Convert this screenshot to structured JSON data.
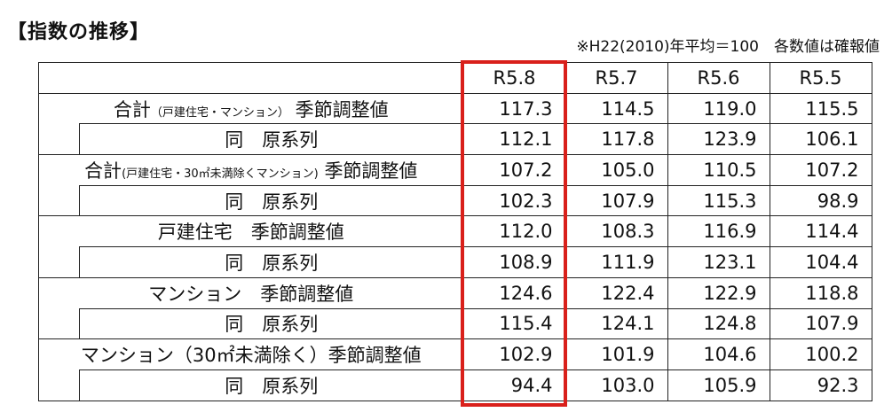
{
  "title": "【指数の推移】",
  "note": "※H22(2010)年平均＝100　各数値は確報値",
  "columns": [
    "R5.8",
    "R5.7",
    "R5.6",
    "R5.5"
  ],
  "highlight_color": "#d9201b",
  "groups": [
    {
      "label_main": "合計",
      "label_paren": "（戸建住宅・マンション）",
      "label_tail": "季節調整値",
      "sa": [
        "117.3",
        "114.5",
        "119.0",
        "115.5"
      ],
      "sub_label": "同　原系列",
      "orig": [
        "112.1",
        "117.8",
        "123.9",
        "106.1"
      ]
    },
    {
      "label_main": "合計",
      "label_paren": "(戸建住宅・30㎡未満除くマンション)",
      "label_tail": "季節調整値",
      "sa": [
        "107.2",
        "105.0",
        "110.5",
        "107.2"
      ],
      "sub_label": "同　原系列",
      "orig": [
        "102.3",
        "107.9",
        "115.3",
        "98.9"
      ]
    },
    {
      "label_main": "戸建住宅　季節調整値",
      "label_paren": "",
      "label_tail": "",
      "sa": [
        "112.0",
        "108.3",
        "116.9",
        "114.4"
      ],
      "sub_label": "同　原系列",
      "orig": [
        "108.9",
        "111.9",
        "123.1",
        "104.4"
      ]
    },
    {
      "label_main": "マンション　季節調整値",
      "label_paren": "",
      "label_tail": "",
      "sa": [
        "124.6",
        "122.4",
        "122.9",
        "118.8"
      ],
      "sub_label": "同　原系列",
      "orig": [
        "115.4",
        "124.1",
        "124.8",
        "107.9"
      ]
    },
    {
      "label_main": "マンション（30㎡未満除く）季節調整値",
      "label_paren": "",
      "label_tail": "",
      "sa": [
        "102.9",
        "101.9",
        "104.6",
        "100.2"
      ],
      "sub_label": "同　原系列",
      "orig": [
        "94.4",
        "103.0",
        "105.9",
        "92.3"
      ]
    }
  ]
}
